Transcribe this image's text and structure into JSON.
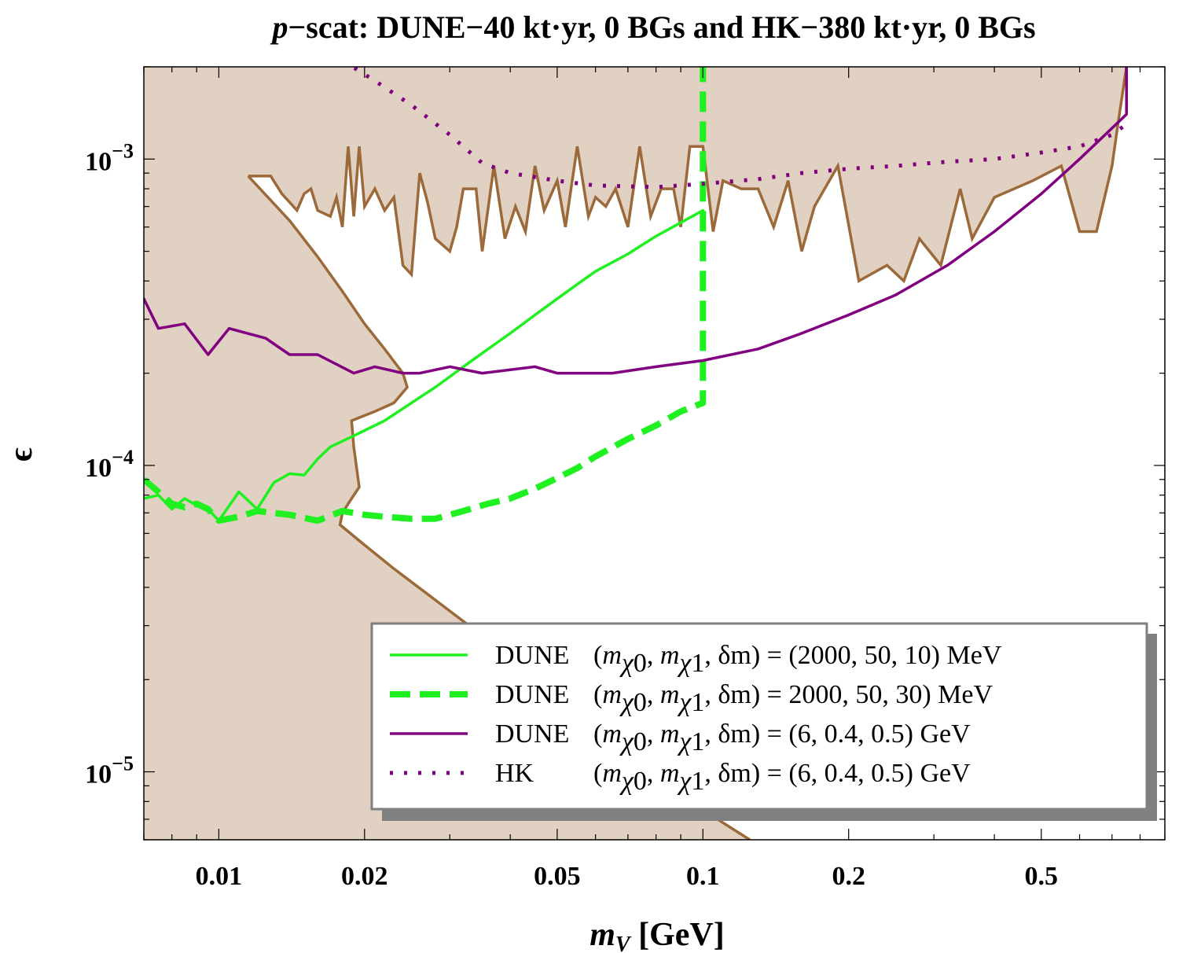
{
  "chart_data": {
    "type": "line",
    "title_parts": [
      "p",
      "−scat: DUNE−40 kt·yr, 0 BGs and HK−380 kt·yr, 0 BGs"
    ],
    "xlabel": {
      "var": "m",
      "sub": "V",
      "unit": " [GeV]"
    },
    "ylabel": "ϵ",
    "xscale": "log",
    "yscale": "log",
    "xlim": [
      0.007,
      0.9
    ],
    "ylim": [
      6e-06,
      0.002
    ],
    "x_ticks": [
      {
        "value": 0.01,
        "label": "0.01"
      },
      {
        "value": 0.02,
        "label": "0.02"
      },
      {
        "value": 0.05,
        "label": "0.05"
      },
      {
        "value": 0.1,
        "label": "0.1"
      },
      {
        "value": 0.2,
        "label": "0.2"
      },
      {
        "value": 0.5,
        "label": "0.5"
      }
    ],
    "y_ticks": [
      {
        "value": 1e-05,
        "base": "10",
        "exp": "−5"
      },
      {
        "value": 0.0001,
        "base": "10",
        "exp": "−4"
      },
      {
        "value": 0.001,
        "base": "10",
        "exp": "−3"
      }
    ],
    "excluded_region": {
      "fill": "#e1d1c2",
      "stroke": "#9c6a3a",
      "allowed_window_boundary": [
        [
          0.0115,
          0.00088
        ],
        [
          0.0128,
          0.00088
        ],
        [
          0.0135,
          0.00077
        ],
        [
          0.0145,
          0.00068
        ],
        [
          0.015,
          0.00077
        ],
        [
          0.0155,
          0.0008
        ],
        [
          0.016,
          0.00068
        ],
        [
          0.017,
          0.00065
        ],
        [
          0.0175,
          0.00075
        ],
        [
          0.018,
          0.0006
        ],
        [
          0.0185,
          0.0011
        ],
        [
          0.019,
          0.00065
        ],
        [
          0.0195,
          0.0011
        ],
        [
          0.02,
          0.0007
        ],
        [
          0.021,
          0.0008
        ],
        [
          0.022,
          0.00068
        ],
        [
          0.023,
          0.00075
        ],
        [
          0.024,
          0.00045
        ],
        [
          0.025,
          0.00042
        ],
        [
          0.026,
          0.0009
        ],
        [
          0.027,
          0.00072
        ],
        [
          0.028,
          0.00055
        ],
        [
          0.03,
          0.0005
        ],
        [
          0.031,
          0.0006
        ],
        [
          0.032,
          0.0008
        ],
        [
          0.034,
          0.0008
        ],
        [
          0.035,
          0.0005
        ],
        [
          0.037,
          0.00095
        ],
        [
          0.039,
          0.00055
        ],
        [
          0.041,
          0.0007
        ],
        [
          0.043,
          0.00058
        ],
        [
          0.045,
          0.00095
        ],
        [
          0.047,
          0.00068
        ],
        [
          0.05,
          0.00085
        ],
        [
          0.052,
          0.0006
        ],
        [
          0.055,
          0.0011
        ],
        [
          0.058,
          0.00065
        ],
        [
          0.06,
          0.00075
        ],
        [
          0.063,
          0.0007
        ],
        [
          0.066,
          0.0008
        ],
        [
          0.07,
          0.0006
        ],
        [
          0.074,
          0.0011
        ],
        [
          0.078,
          0.00065
        ],
        [
          0.082,
          0.0008
        ],
        [
          0.087,
          0.0008
        ],
        [
          0.09,
          0.0006
        ],
        [
          0.094,
          0.0011
        ],
        [
          0.1,
          0.0011
        ],
        [
          0.105,
          0.00058
        ],
        [
          0.11,
          0.00085
        ],
        [
          0.12,
          0.0008
        ],
        [
          0.13,
          0.0008
        ],
        [
          0.14,
          0.0006
        ],
        [
          0.15,
          0.00085
        ],
        [
          0.16,
          0.0005
        ],
        [
          0.17,
          0.0007
        ],
        [
          0.19,
          0.00095
        ],
        [
          0.21,
          0.0004
        ],
        [
          0.24,
          0.00045
        ],
        [
          0.26,
          0.0004
        ],
        [
          0.28,
          0.00055
        ],
        [
          0.31,
          0.00045
        ],
        [
          0.34,
          0.0008
        ],
        [
          0.36,
          0.00055
        ],
        [
          0.4,
          0.00075
        ],
        [
          0.48,
          0.00085
        ],
        [
          0.55,
          0.00095
        ],
        [
          0.6,
          0.00058
        ],
        [
          0.65,
          0.00058
        ],
        [
          0.7,
          0.00095
        ],
        [
          0.72,
          0.0013
        ],
        [
          0.75,
          0.002
        ]
      ],
      "left_band_boundary": [
        [
          0.0115,
          0.00088
        ],
        [
          0.014,
          0.00063
        ],
        [
          0.016,
          0.00048
        ],
        [
          0.018,
          0.00037
        ],
        [
          0.02,
          0.00029
        ],
        [
          0.022,
          0.00024
        ],
        [
          0.024,
          0.0002
        ],
        [
          0.0245,
          0.00018
        ],
        [
          0.023,
          0.00016
        ],
        [
          0.021,
          0.00015
        ],
        [
          0.0188,
          0.00014
        ],
        [
          0.019,
          0.000115
        ],
        [
          0.0195,
          8.5e-05
        ],
        [
          0.0185,
          7.5e-05
        ],
        [
          0.018,
          7e-05
        ],
        [
          0.0178,
          6.4e-05
        ],
        [
          0.02,
          5.5e-05
        ],
        [
          0.023,
          4.6e-05
        ],
        [
          0.027,
          3.8e-05
        ],
        [
          0.032,
          3.1e-05
        ],
        [
          0.04,
          2.4e-05
        ],
        [
          0.05,
          1.9e-05
        ],
        [
          0.065,
          1.35e-05
        ],
        [
          0.085,
          9.5e-06
        ],
        [
          0.1,
          7.5e-06
        ],
        [
          0.125,
          6e-06
        ]
      ]
    },
    "series": [
      {
        "name": "DUNE (mχ0, mχ1, δm) = (2000, 50, 10) MeV",
        "color": "#1ff01f",
        "style": "solid",
        "points": [
          [
            0.007,
            7.8e-05
          ],
          [
            0.0075,
            8e-05
          ],
          [
            0.008,
            7.2e-05
          ],
          [
            0.0085,
            7.8e-05
          ],
          [
            0.009,
            7.4e-05
          ],
          [
            0.0095,
            7.2e-05
          ],
          [
            0.01,
            6.6e-05
          ],
          [
            0.011,
            8.2e-05
          ],
          [
            0.012,
            7.2e-05
          ],
          [
            0.013,
            8.8e-05
          ],
          [
            0.014,
            9.4e-05
          ],
          [
            0.015,
            9.3e-05
          ],
          [
            0.016,
            0.000105
          ],
          [
            0.017,
            0.000115
          ],
          [
            0.018,
            0.00012
          ],
          [
            0.019,
            0.000125
          ],
          [
            0.02,
            0.00013
          ],
          [
            0.022,
            0.00014
          ],
          [
            0.025,
            0.00016
          ],
          [
            0.028,
            0.00018
          ],
          [
            0.032,
            0.00021
          ],
          [
            0.036,
            0.00024
          ],
          [
            0.04,
            0.00027
          ],
          [
            0.045,
            0.00031
          ],
          [
            0.05,
            0.00035
          ],
          [
            0.055,
            0.00039
          ],
          [
            0.06,
            0.00043
          ],
          [
            0.07,
            0.00049
          ],
          [
            0.08,
            0.00056
          ],
          [
            0.09,
            0.00062
          ],
          [
            0.1,
            0.00068
          ]
        ]
      },
      {
        "name": "DUNE (mχ0, mχ1, δm) = 2000, 50, 30) MeV",
        "color": "#1ff01f",
        "style": "dashed",
        "points": [
          [
            0.007,
            9e-05
          ],
          [
            0.0075,
            8.2e-05
          ],
          [
            0.008,
            7.5e-05
          ],
          [
            0.0085,
            7.3e-05
          ],
          [
            0.009,
            7.5e-05
          ],
          [
            0.0095,
            7.2e-05
          ],
          [
            0.01,
            6.6e-05
          ],
          [
            0.011,
            6.8e-05
          ],
          [
            0.012,
            7.1e-05
          ],
          [
            0.014,
            6.9e-05
          ],
          [
            0.016,
            6.6e-05
          ],
          [
            0.018,
            7.1e-05
          ],
          [
            0.02,
            6.9e-05
          ],
          [
            0.022,
            6.8e-05
          ],
          [
            0.025,
            6.7e-05
          ],
          [
            0.028,
            6.7e-05
          ],
          [
            0.032,
            7.1e-05
          ],
          [
            0.036,
            7.5e-05
          ],
          [
            0.04,
            7.8e-05
          ],
          [
            0.045,
            8.4e-05
          ],
          [
            0.05,
            9.1e-05
          ],
          [
            0.055,
            9.8e-05
          ],
          [
            0.06,
            0.000107
          ],
          [
            0.07,
            0.000122
          ],
          [
            0.08,
            0.000135
          ],
          [
            0.09,
            0.00015
          ],
          [
            0.1,
            0.00016
          ],
          [
            0.1,
            0.002
          ]
        ]
      },
      {
        "name": "DUNE (mχ0, mχ1, δm) = (6, 0.4, 0.5) GeV",
        "color": "#800080",
        "style": "solid",
        "points": [
          [
            0.007,
            0.00035
          ],
          [
            0.0075,
            0.00028
          ],
          [
            0.0085,
            0.00029
          ],
          [
            0.0095,
            0.00023
          ],
          [
            0.0105,
            0.00028
          ],
          [
            0.0125,
            0.00026
          ],
          [
            0.014,
            0.00023
          ],
          [
            0.016,
            0.00023
          ],
          [
            0.019,
            0.0002
          ],
          [
            0.021,
            0.00021
          ],
          [
            0.024,
            0.0002
          ],
          [
            0.026,
            0.0002
          ],
          [
            0.03,
            0.00021
          ],
          [
            0.035,
            0.0002
          ],
          [
            0.045,
            0.00021
          ],
          [
            0.05,
            0.0002
          ],
          [
            0.065,
            0.0002
          ],
          [
            0.08,
            0.00021
          ],
          [
            0.1,
            0.00022
          ],
          [
            0.13,
            0.00024
          ],
          [
            0.16,
            0.00027
          ],
          [
            0.2,
            0.00031
          ],
          [
            0.25,
            0.00036
          ],
          [
            0.32,
            0.00045
          ],
          [
            0.4,
            0.00058
          ],
          [
            0.5,
            0.00077
          ],
          [
            0.6,
            0.001
          ],
          [
            0.75,
            0.0014
          ],
          [
            0.75,
            0.002
          ]
        ]
      },
      {
        "name": "HK (mχ0, mχ1, δm) = (6, 0.4, 0.5) GeV",
        "color": "#800080",
        "style": "dotted",
        "points": [
          [
            0.018,
            0.0021
          ],
          [
            0.021,
            0.0018
          ],
          [
            0.025,
            0.0015
          ],
          [
            0.03,
            0.0012
          ],
          [
            0.035,
            0.00097
          ],
          [
            0.04,
            0.0009
          ],
          [
            0.05,
            0.00085
          ],
          [
            0.06,
            0.00082
          ],
          [
            0.08,
            0.00081
          ],
          [
            0.1,
            0.00083
          ],
          [
            0.13,
            0.00086
          ],
          [
            0.16,
            0.0009
          ],
          [
            0.2,
            0.00093
          ],
          [
            0.25,
            0.00095
          ],
          [
            0.32,
            0.00098
          ],
          [
            0.4,
            0.001
          ],
          [
            0.5,
            0.00105
          ],
          [
            0.6,
            0.0011
          ],
          [
            0.7,
            0.0012
          ],
          [
            0.75,
            0.0013
          ]
        ]
      }
    ],
    "legend": {
      "placement": "bottom-right",
      "entries": [
        {
          "prefix": "DUNE",
          "rhs": "(2000, 50, 10) MeV"
        },
        {
          "prefix": "DUNE",
          "rhs": "2000, 50, 30) MeV"
        },
        {
          "prefix": "DUNE",
          "rhs": "(6, 0.4, 0.5) GeV"
        },
        {
          "prefix": "HK",
          "rhs": "(6, 0.4, 0.5) GeV"
        }
      ]
    }
  }
}
